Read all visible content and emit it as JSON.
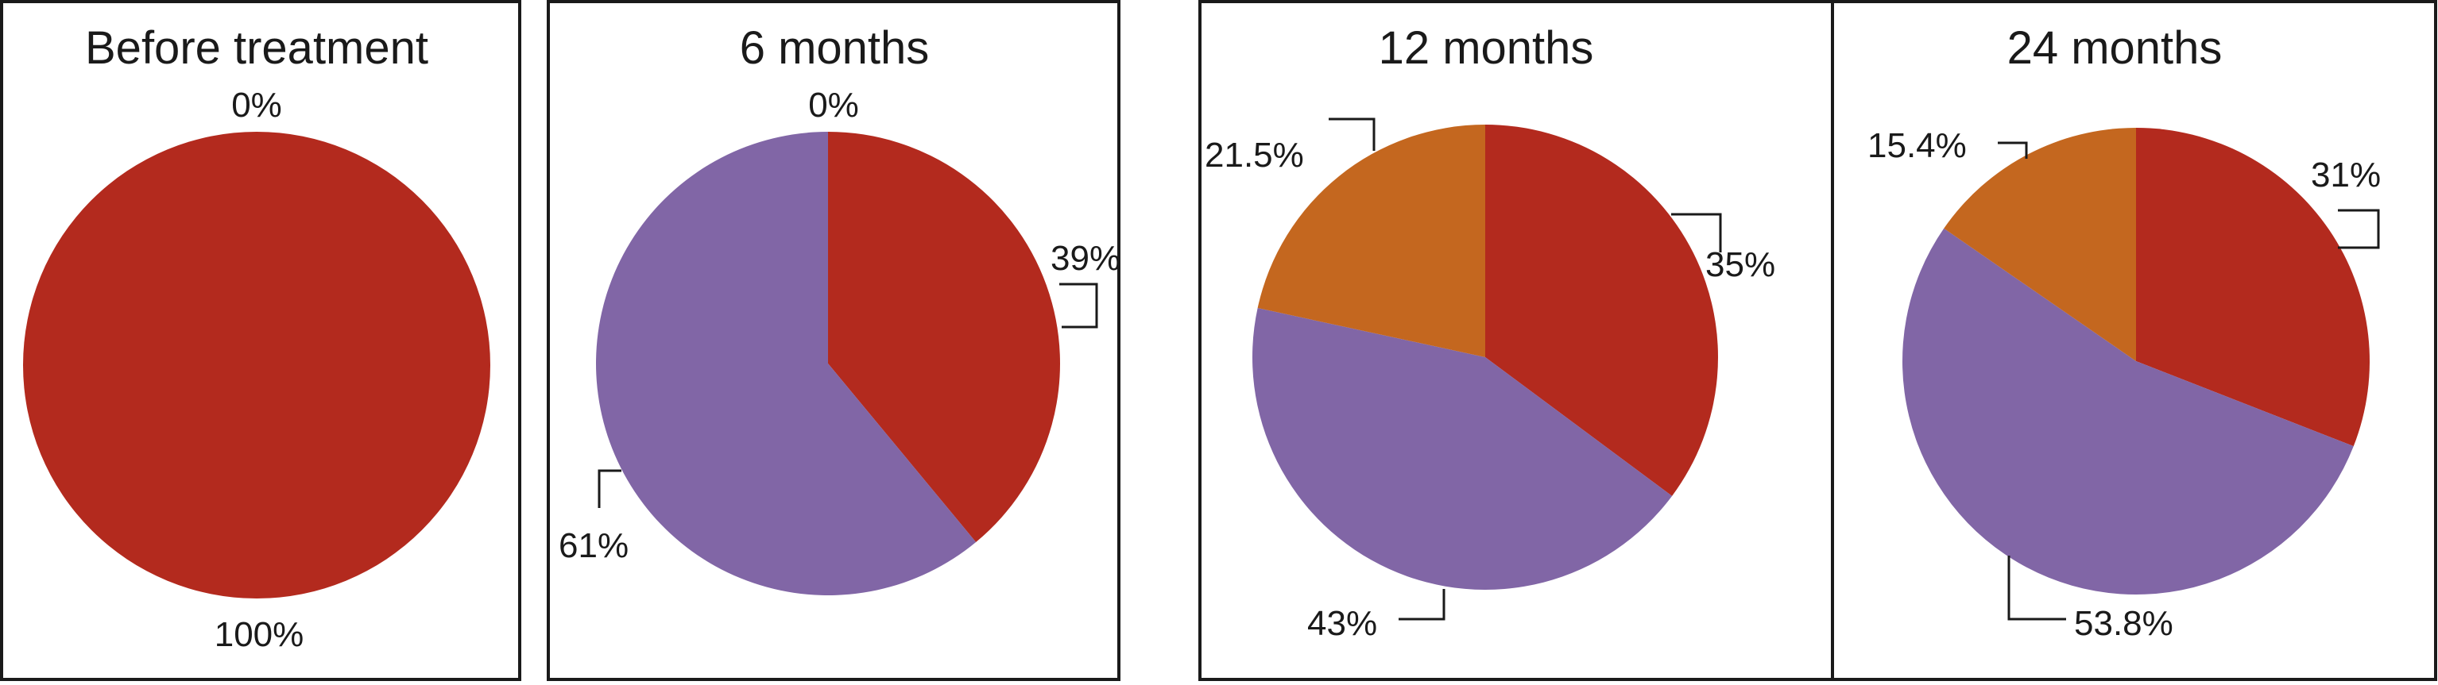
{
  "colors": {
    "red": "#b32a1e",
    "purple": "#8166a6",
    "orange": "#c4671f"
  },
  "chart_data": [
    {
      "type": "pie",
      "title": "Before treatment",
      "slices": [
        {
          "value": 100,
          "label": "100%",
          "color": "red"
        },
        {
          "value": 0,
          "label": "0%",
          "color": "orange"
        }
      ]
    },
    {
      "type": "pie",
      "title": "6 months",
      "slices": [
        {
          "value": 39,
          "label": "39%",
          "color": "red"
        },
        {
          "value": 61,
          "label": "61%",
          "color": "purple"
        },
        {
          "value": 0,
          "label": "0%",
          "color": "orange"
        }
      ]
    },
    {
      "type": "pie",
      "title": "12 months",
      "slices": [
        {
          "value": 35,
          "label": "35%",
          "color": "red"
        },
        {
          "value": 43,
          "label": "43%",
          "color": "purple"
        },
        {
          "value": 21.5,
          "label": "21.5%",
          "color": "orange"
        }
      ]
    },
    {
      "type": "pie",
      "title": "24 months",
      "slices": [
        {
          "value": 31,
          "label": "31%",
          "color": "red"
        },
        {
          "value": 53.8,
          "label": "53.8%",
          "color": "purple"
        },
        {
          "value": 15.4,
          "label": "15.4%",
          "color": "orange"
        }
      ]
    }
  ]
}
